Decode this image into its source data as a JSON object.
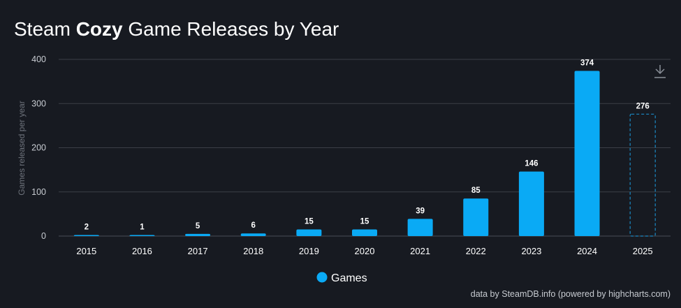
{
  "title": {
    "pre": "Steam ",
    "bold": "Cozy",
    "post": " Game Releases by Year"
  },
  "credit": "data by SteamDB.info (powered by highcharts.com)",
  "download_icon": "download-icon",
  "colors": {
    "bar": "#0aaaf5",
    "background": "#171a21",
    "grid": "#3b3f47",
    "text": "#ffffff",
    "axis_label": "#6e737c"
  },
  "chart_data": {
    "type": "bar",
    "title": "Steam Cozy Game Releases by Year",
    "categories": [
      "2015",
      "2016",
      "2017",
      "2018",
      "2019",
      "2020",
      "2021",
      "2022",
      "2023",
      "2024",
      "2025"
    ],
    "series": [
      {
        "name": "Games",
        "values": [
          2,
          1,
          5,
          6,
          15,
          15,
          39,
          85,
          146,
          374,
          276
        ],
        "color": "#0aaaf5"
      }
    ],
    "partial_categories": [
      "2025"
    ],
    "xlabel": "",
    "ylabel": "Games released per year",
    "ylim": [
      0,
      400
    ],
    "yticks": [
      0,
      100,
      200,
      300,
      400
    ],
    "grid": true,
    "legend": "bottom-center",
    "data_labels": true
  }
}
